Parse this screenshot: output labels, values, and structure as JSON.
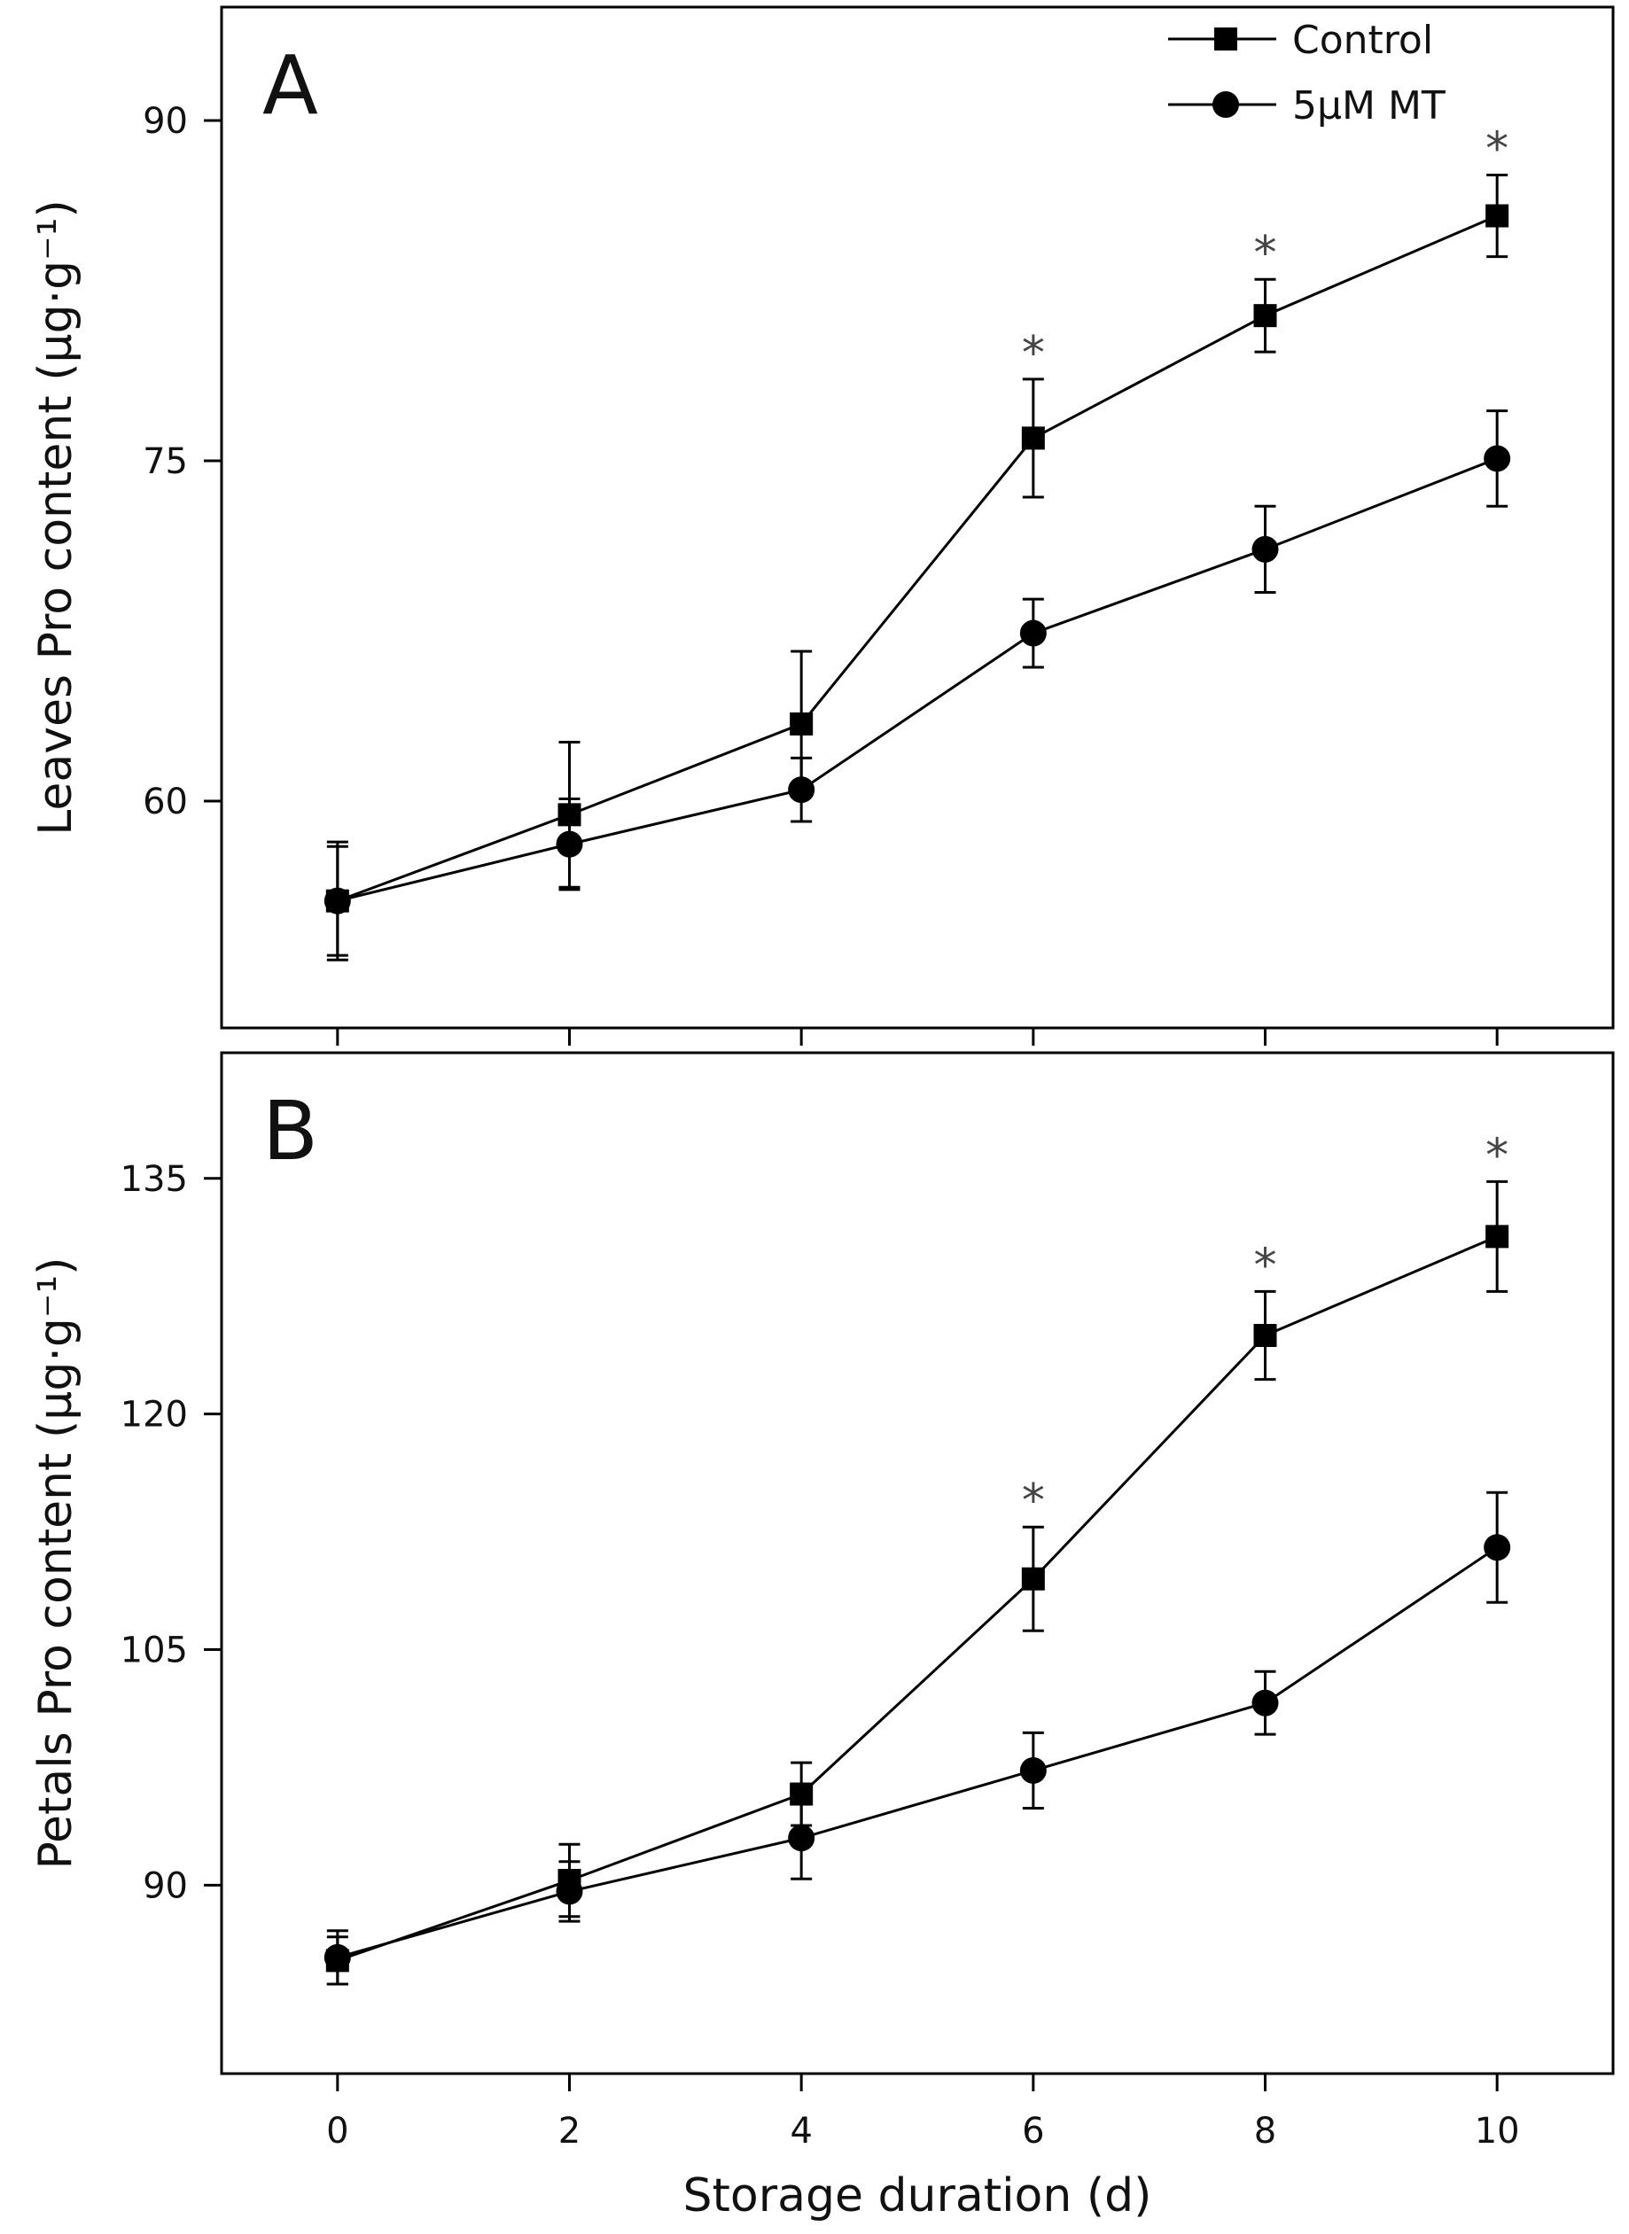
{
  "chart_data": [
    {
      "type": "line",
      "panel_label": "A",
      "ylabel": "Leaves Pro content (μg·g⁻¹)",
      "xlabel": "",
      "x": [
        0,
        2,
        4,
        6,
        8,
        10
      ],
      "xlim": [
        -1,
        11
      ],
      "ylim": [
        50,
        95
      ],
      "yticks": [
        60,
        75,
        90
      ],
      "series": [
        {
          "name": "Control",
          "marker": "square",
          "values": [
            55.6,
            59.4,
            63.4,
            76.0,
            81.4,
            85.8
          ],
          "errors": [
            2.6,
            3.2,
            3.2,
            2.6,
            1.6,
            1.8
          ]
        },
        {
          "name": "5μM MT",
          "marker": "circle",
          "values": [
            55.6,
            58.1,
            60.5,
            67.4,
            71.1,
            75.1
          ],
          "errors": [
            2.4,
            2.0,
            1.4,
            1.5,
            1.9,
            2.1
          ]
        }
      ],
      "significance": [
        {
          "x": 6,
          "label": "*"
        },
        {
          "x": 8,
          "label": "*"
        },
        {
          "x": 10,
          "label": "*"
        }
      ],
      "legend": {
        "placement": "top-right",
        "entries": [
          "Control",
          "5μM MT"
        ]
      },
      "grid": false
    },
    {
      "type": "line",
      "panel_label": "B",
      "ylabel": "Petals Pro content (μg·g⁻¹)",
      "xlabel": "Storage duration (d)",
      "x": [
        0,
        2,
        4,
        6,
        8,
        10
      ],
      "xlim": [
        -1,
        11
      ],
      "ylim": [
        78,
        143
      ],
      "yticks": [
        90,
        105,
        120,
        135
      ],
      "xticks": [
        0,
        2,
        4,
        6,
        8,
        10
      ],
      "series": [
        {
          "name": "Control",
          "marker": "square",
          "values": [
            85.2,
            90.3,
            95.8,
            109.5,
            125.0,
            131.3
          ],
          "errors": [
            1.5,
            2.3,
            2.0,
            3.3,
            2.8,
            3.5
          ]
        },
        {
          "name": "5μM MT",
          "marker": "circle",
          "values": [
            85.4,
            89.6,
            93.0,
            97.3,
            101.6,
            111.5
          ],
          "errors": [
            1.7,
            1.9,
            2.6,
            2.4,
            2.0,
            3.5
          ]
        }
      ],
      "significance": [
        {
          "x": 6,
          "label": "*"
        },
        {
          "x": 8,
          "label": "*"
        },
        {
          "x": 10,
          "label": "*"
        }
      ],
      "grid": false
    }
  ]
}
